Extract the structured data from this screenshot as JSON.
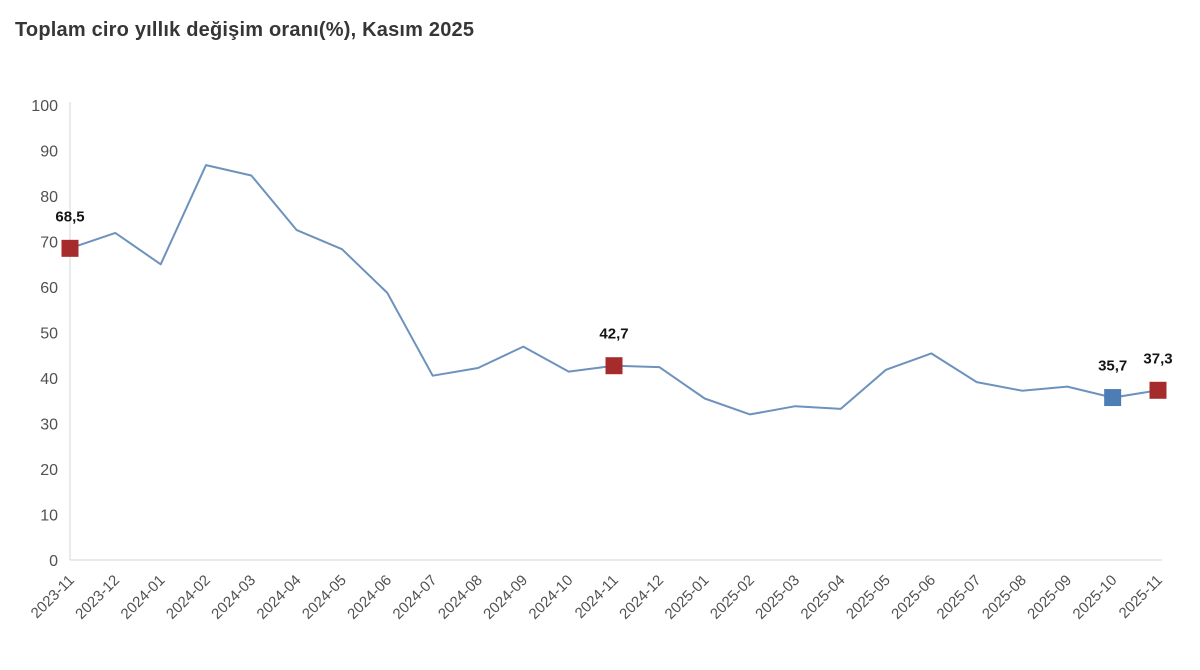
{
  "header": {
    "title": "Toplam ciro yıllık değişim oranı(%), Kasım 2025"
  },
  "chart_data": {
    "type": "line",
    "title": "Toplam ciro yıllık değişim oranı(%), Kasım 2025",
    "categories": [
      "2023-11",
      "2023-12",
      "2024-01",
      "2024-02",
      "2024-03",
      "2024-04",
      "2024-05",
      "2024-06",
      "2024-07",
      "2024-08",
      "2024-09",
      "2024-10",
      "2024-11",
      "2024-12",
      "2025-01",
      "2025-02",
      "2025-03",
      "2025-04",
      "2025-05",
      "2025-06",
      "2025-07",
      "2025-08",
      "2025-09",
      "2025-10",
      "2025-11"
    ],
    "values": [
      68.5,
      71.9,
      65.0,
      86.8,
      84.5,
      72.5,
      68.3,
      58.7,
      40.5,
      42.2,
      46.9,
      41.4,
      42.7,
      42.4,
      35.5,
      32.0,
      33.8,
      33.2,
      41.8,
      45.4,
      39.1,
      37.2,
      38.1,
      35.7,
      37.3
    ],
    "labeled_points": [
      {
        "category": "2023-11",
        "value": 68.5,
        "label": "68,5",
        "marker": "red"
      },
      {
        "category": "2024-11",
        "value": 42.7,
        "label": "42,7",
        "marker": "red"
      },
      {
        "category": "2025-10",
        "value": 35.7,
        "label": "35,7",
        "marker": "blue"
      },
      {
        "category": "2025-11",
        "value": 37.3,
        "label": "37,3",
        "marker": "red"
      }
    ],
    "xlabel": "",
    "ylabel": "",
    "ylim": [
      0,
      100
    ],
    "ytick_step": 10,
    "yticks": [
      "0",
      "10",
      "20",
      "30",
      "40",
      "50",
      "60",
      "70",
      "80",
      "90",
      "100"
    ],
    "grid": false,
    "legend_position": "none",
    "x_label_rotation": -45,
    "colors": {
      "line": "#6d92bd",
      "marker_red": "#a62c2c",
      "marker_blue": "#4d7db5",
      "axis_line": "#d6d6d6",
      "tick_label": "#515151",
      "data_label": "#141414",
      "title": "#363636",
      "background": "#ffffff"
    }
  }
}
